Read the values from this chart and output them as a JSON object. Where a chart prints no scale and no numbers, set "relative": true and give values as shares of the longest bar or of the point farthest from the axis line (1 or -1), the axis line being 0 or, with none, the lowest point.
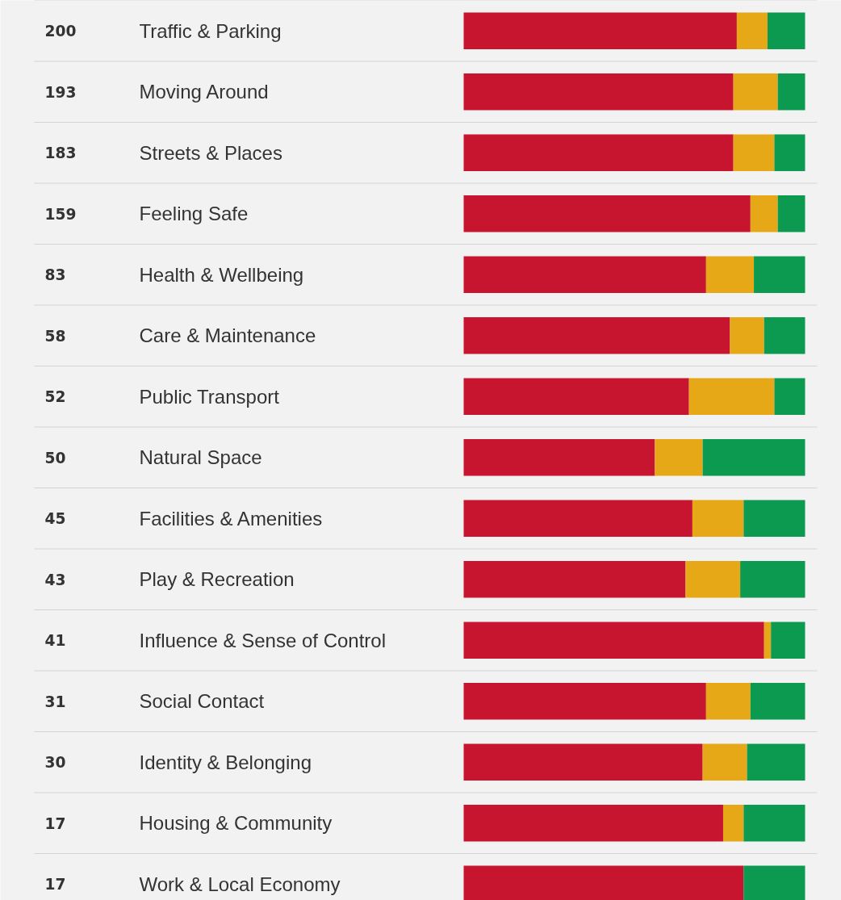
{
  "chart_data": {
    "type": "bar",
    "orientation": "horizontal",
    "stacked": true,
    "relative": true,
    "grid": "y",
    "categories": [
      "Traffic & Parking",
      "Moving Around",
      "Streets & Places",
      "Feeling Safe",
      "Health & Wellbeing",
      "Care & Maintenance",
      "Public Transport",
      "Natural Space",
      "Facilities & Amenities",
      "Play & Recreation",
      "Influence & Sense of Control",
      "Social Contact",
      "Identity & Belonging",
      "Housing & Community",
      "Work & Local Economy"
    ],
    "annotations": [
      "200",
      "193",
      "183",
      "159",
      "83",
      "58",
      "52",
      "50",
      "45",
      "43",
      "41",
      "31",
      "30",
      "17",
      "17"
    ],
    "series": [
      {
        "color": "#c8152f",
        "values": [
          0.8,
          0.79,
          0.79,
          0.84,
          0.71,
          0.78,
          0.66,
          0.56,
          0.67,
          0.65,
          0.88,
          0.71,
          0.7,
          0.76,
          0.82
        ]
      },
      {
        "color": "#e6a817",
        "values": [
          0.09,
          0.13,
          0.12,
          0.08,
          0.14,
          0.1,
          0.25,
          0.14,
          0.15,
          0.16,
          0.02,
          0.13,
          0.13,
          0.06,
          0
        ]
      },
      {
        "color": "#0b9a50",
        "values": [
          0.11,
          0.08,
          0.09,
          0.08,
          0.15,
          0.12,
          0.09,
          0.3,
          0.18,
          0.19,
          0.1,
          0.16,
          0.17,
          0.18,
          0.18
        ]
      }
    ]
  }
}
